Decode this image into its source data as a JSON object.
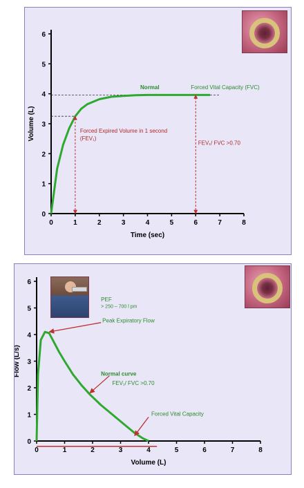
{
  "chart_data": [
    {
      "type": "line",
      "title": "",
      "xlabel": "Time (sec)",
      "ylabel": "Volume (L)",
      "xlim": [
        0,
        8
      ],
      "ylim": [
        0,
        6
      ],
      "x_ticks": [
        "0",
        "1",
        "2",
        "3",
        "4",
        "5",
        "6",
        "7",
        "8"
      ],
      "y_ticks": [
        "0",
        "1",
        "2",
        "3",
        "4",
        "5",
        "6"
      ],
      "grid": false,
      "series": [
        {
          "name": "Normal",
          "color": "#2fa82f",
          "x": [
            0,
            0.25,
            0.5,
            0.75,
            1,
            1.25,
            1.5,
            2,
            2.5,
            3,
            3.5,
            4,
            5,
            6,
            6.6
          ],
          "y": [
            0,
            1.5,
            2.3,
            2.85,
            3.25,
            3.5,
            3.65,
            3.82,
            3.9,
            3.93,
            3.95,
            3.96,
            3.96,
            3.96,
            3.96
          ]
        }
      ],
      "reference_lines": [
        {
          "kind": "horizontal-dashed",
          "y": 3.96,
          "from_x": 0,
          "to_x": 7
        },
        {
          "kind": "horizontal-dashed",
          "y": 3.25,
          "from_x": 0,
          "to_x": 1
        }
      ],
      "arrows": [
        {
          "x": 1,
          "from_y": 0,
          "to_y": 3.25,
          "color": "#c03030"
        },
        {
          "x": 6,
          "from_y": 0,
          "to_y": 3.96,
          "color": "#c03030"
        }
      ],
      "annotations": [
        {
          "text": "Normal",
          "x": 3.7,
          "y": 4.15,
          "color": "#2d8a2d",
          "bold": true
        },
        {
          "text": "Forced Vital Capacity (FVC)",
          "x": 5.8,
          "y": 4.15,
          "color": "#2d8a2d"
        },
        {
          "text": "Forced Expired Volume in 1 second",
          "x": 1.2,
          "y": 2.7,
          "color": "#b02a2a"
        },
        {
          "text": "(FEV₁)",
          "x": 1.2,
          "y": 2.45,
          "color": "#b02a2a"
        },
        {
          "text": "FEV₁/ FVC >0.70",
          "x": 6.1,
          "y": 2.3,
          "color": "#b02a2a"
        }
      ],
      "images": [
        "airway-cross-section"
      ]
    },
    {
      "type": "line",
      "title": "",
      "xlabel": "Volume (L)",
      "ylabel": "Flow (L/s)",
      "xlim": [
        0,
        8
      ],
      "ylim": [
        0,
        6
      ],
      "x_ticks": [
        "0",
        "1",
        "2",
        "3",
        "4",
        "5",
        "6",
        "7",
        "8"
      ],
      "y_ticks": [
        "0",
        "1",
        "2",
        "3",
        "4",
        "5",
        "6"
      ],
      "grid": false,
      "series": [
        {
          "name": "Normal curve",
          "color": "#2fa82f",
          "x": [
            0,
            0.05,
            0.15,
            0.3,
            0.45,
            0.6,
            0.8,
            1.0,
            1.3,
            1.6,
            1.9,
            2.3,
            2.7,
            3.1,
            3.5,
            3.8,
            4.0
          ],
          "y": [
            0,
            2.5,
            3.8,
            4.1,
            4.05,
            3.75,
            3.35,
            3.0,
            2.5,
            2.1,
            1.75,
            1.35,
            1.0,
            0.65,
            0.3,
            0.1,
            0
          ]
        }
      ],
      "arrows": [
        {
          "from": [
            2.3,
            4.45
          ],
          "to": [
            0.45,
            4.1
          ],
          "color": "#c03030"
        },
        {
          "from": [
            2.6,
            2.45
          ],
          "to": [
            1.9,
            1.8
          ],
          "color": "#c03030"
        },
        {
          "from": [
            4.0,
            0.9
          ],
          "to": [
            3.5,
            0.2
          ],
          "color": "#c03030"
        }
      ],
      "reference_lines": [
        {
          "kind": "horizontal",
          "y": -0.2,
          "from_x": 0,
          "to_x": 4.3,
          "color": "#c03030"
        }
      ],
      "annotations": [
        {
          "text": "Peak Expiratory Flow",
          "x": 2.35,
          "y": 4.45,
          "color": "#2d8a2d"
        },
        {
          "text": "Normal curve",
          "x": 2.3,
          "y": 2.45,
          "color": "#2d8a2d",
          "bold": true
        },
        {
          "text": "FEV₁/ FVC >0.70",
          "x": 2.7,
          "y": 2.1,
          "color": "#2d8a2d"
        },
        {
          "text": "Forced Vital Capacity",
          "x": 4.1,
          "y": 0.95,
          "color": "#2d8a2d"
        },
        {
          "text": "PEF",
          "x": 2.3,
          "y": 5.25,
          "color": "#2d8a2d"
        },
        {
          "text": "> 250 – 700 l pm",
          "x": 2.3,
          "y": 5.0,
          "color": "#2d8a2d"
        }
      ],
      "images": [
        "child-using-peak-flow-meter",
        "airway-cross-section"
      ]
    }
  ]
}
